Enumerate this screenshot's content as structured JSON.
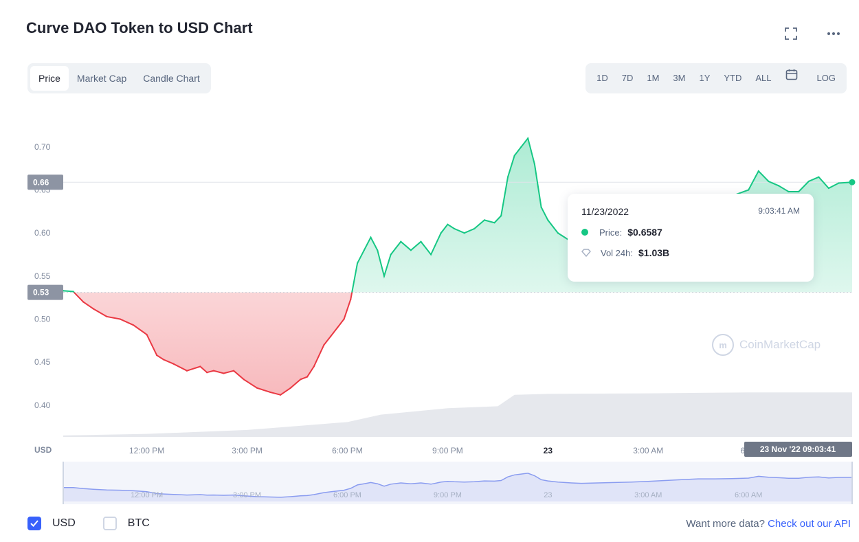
{
  "header": {
    "title": "Curve DAO Token to USD Chart"
  },
  "icons": {
    "expand": "expand-icon",
    "more": "more-horizontal-icon",
    "calendar": "calendar-icon",
    "check": "check-icon",
    "diamond": "diamond-icon"
  },
  "tabs": [
    {
      "label": "Price"
    },
    {
      "label": "Market Cap"
    },
    {
      "label": "Candle Chart"
    }
  ],
  "ranges": [
    {
      "label": "1D"
    },
    {
      "label": "7D"
    },
    {
      "label": "1M"
    },
    {
      "label": "3M"
    },
    {
      "label": "1Y"
    },
    {
      "label": "YTD"
    },
    {
      "label": "ALL"
    }
  ],
  "log_label": "LOG",
  "tooltip": {
    "date": "11/23/2022",
    "time": "9:03:41 AM",
    "price_label": "Price:",
    "price_value": "$0.6587",
    "vol_label": "Vol 24h:",
    "vol_value": "$1.03B"
  },
  "watermark": "CoinMarketCap",
  "footer": {
    "usd_label": "USD",
    "usd_checked": true,
    "btc_label": "BTC",
    "btc_checked": false,
    "more_text": "Want more data?",
    "api_link": "Check out our API"
  },
  "colors": {
    "up": "#16c784",
    "down": "#ea3943",
    "accent": "#3861fb",
    "navigator": "#8a9cf0",
    "volume": "#e6e8ed"
  },
  "chart_data": {
    "type": "area",
    "ylabel": "USD",
    "ylim": [
      0.36,
      0.735
    ],
    "yticks": [
      0.4,
      0.45,
      0.5,
      0.55,
      0.6,
      0.65,
      0.7
    ],
    "ytick_labels": [
      "0.40",
      "0.45",
      "0.50",
      "0.55",
      "0.60",
      "0.65",
      "0.70"
    ],
    "xlim_hours": [
      -14.5,
      9.1
    ],
    "x_ticks": [
      {
        "hour": -12,
        "label": "12:00 PM",
        "bold": false
      },
      {
        "hour": -9,
        "label": "3:00 PM",
        "bold": false
      },
      {
        "hour": -6,
        "label": "6:00 PM",
        "bold": false
      },
      {
        "hour": -3,
        "label": "9:00 PM",
        "bold": false
      },
      {
        "hour": 0,
        "label": "23",
        "bold": true
      },
      {
        "hour": 3,
        "label": "3:00 AM",
        "bold": false
      },
      {
        "hour": 6,
        "label": "6:00",
        "bold": false
      }
    ],
    "baseline": 0.531,
    "baseline_label": "0.53",
    "current_label": "0.66",
    "current_date_label": "23 Nov '22 09:03:41",
    "nav_ticks": [
      "12:00 PM",
      "3:00 PM",
      "6:00 PM",
      "9:00 PM",
      "23",
      "3:00 AM",
      "6:00 AM"
    ],
    "series": [
      {
        "x_hours": [
          -14.5,
          -14.2,
          -13.9,
          -13.6,
          -13.2,
          -12.8,
          -12.4,
          -12.0,
          -11.7,
          -11.5,
          -11.2,
          -10.8,
          -10.4,
          -10.2,
          -10.0,
          -9.7,
          -9.4,
          -9.1,
          -8.7,
          -8.3,
          -8.0,
          -7.7,
          -7.4,
          -7.2,
          -7.0,
          -6.7,
          -6.5,
          -6.3,
          -6.1,
          -5.9,
          -5.7,
          -5.5,
          -5.3,
          -5.1,
          -4.9,
          -4.7,
          -4.4,
          -4.1,
          -3.8,
          -3.5,
          -3.2,
          -3.0,
          -2.8,
          -2.5,
          -2.2,
          -1.9,
          -1.6,
          -1.4,
          -1.2,
          -1.0,
          -0.8,
          -0.6,
          -0.4,
          -0.2,
          0.0,
          0.3,
          0.7,
          1.0,
          1.5,
          2.0,
          2.5,
          3.0,
          3.5,
          4.0,
          4.5,
          5.0,
          5.5,
          6.0,
          6.3,
          6.6,
          6.9,
          7.2,
          7.5,
          7.8,
          8.1,
          8.4,
          8.7,
          9.1
        ],
        "y": [
          0.533,
          0.532,
          0.52,
          0.512,
          0.503,
          0.5,
          0.493,
          0.482,
          0.458,
          0.453,
          0.448,
          0.44,
          0.445,
          0.438,
          0.44,
          0.437,
          0.44,
          0.43,
          0.42,
          0.415,
          0.412,
          0.42,
          0.43,
          0.433,
          0.445,
          0.47,
          0.48,
          0.49,
          0.5,
          0.523,
          0.565,
          0.58,
          0.595,
          0.58,
          0.55,
          0.575,
          0.59,
          0.58,
          0.59,
          0.575,
          0.6,
          0.61,
          0.605,
          0.6,
          0.605,
          0.615,
          0.612,
          0.62,
          0.665,
          0.69,
          0.7,
          0.71,
          0.68,
          0.63,
          0.615,
          0.6,
          0.59,
          0.585,
          0.59,
          0.595,
          0.6,
          0.61,
          0.62,
          0.63,
          0.64,
          0.64,
          0.643,
          0.65,
          0.672,
          0.66,
          0.655,
          0.648,
          0.648,
          0.66,
          0.665,
          0.652,
          0.658,
          0.659
        ]
      }
    ],
    "volume": {
      "x_hours": [
        -14.5,
        -12,
        -9,
        -6,
        -5,
        -3,
        -1.5,
        -1,
        0,
        3,
        6,
        9.1
      ],
      "y_frac": [
        0.03,
        0.06,
        0.14,
        0.3,
        0.45,
        0.58,
        0.62,
        0.85,
        0.87,
        0.88,
        0.9,
        0.9
      ]
    }
  }
}
